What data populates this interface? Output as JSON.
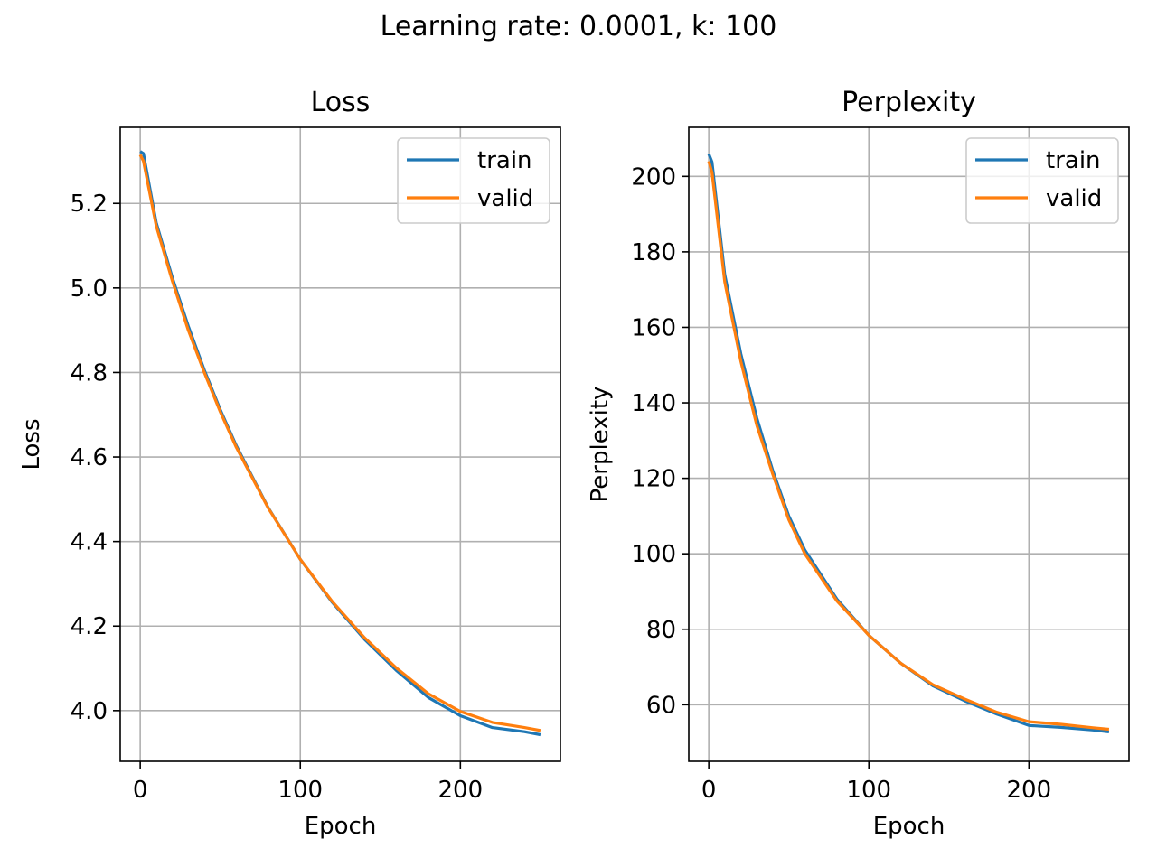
{
  "suptitle": "Learning rate: 0.0001, k: 100",
  "colors": {
    "train": "#1f77b4",
    "valid": "#ff7f0e",
    "grid": "#b0b0b0"
  },
  "chart_data": [
    {
      "type": "line",
      "title": "Loss",
      "xlabel": "Epoch",
      "ylabel": "Loss",
      "xlim": [
        -12.5,
        262.5
      ],
      "ylim": [
        3.88,
        5.38
      ],
      "xticks": [
        0,
        100,
        200
      ],
      "yticks": [
        4.0,
        4.2,
        4.4,
        4.6,
        4.8,
        5.0,
        5.2
      ],
      "ytick_decimals": 1,
      "grid": true,
      "legend": "upper right",
      "x": [
        0,
        2,
        10,
        20,
        30,
        40,
        50,
        60,
        80,
        100,
        120,
        140,
        160,
        180,
        200,
        220,
        240,
        250
      ],
      "series": [
        {
          "name": "train",
          "color_key": "train",
          "values": [
            5.323,
            5.318,
            5.155,
            5.025,
            4.91,
            4.806,
            4.712,
            4.627,
            4.48,
            4.358,
            4.256,
            4.169,
            4.095,
            4.031,
            3.988,
            3.96,
            3.95,
            3.943
          ]
        },
        {
          "name": "valid",
          "color_key": "valid",
          "values": [
            5.315,
            5.3,
            5.147,
            5.017,
            4.9,
            4.8,
            4.707,
            4.623,
            4.479,
            4.358,
            4.258,
            4.173,
            4.101,
            4.04,
            3.998,
            3.972,
            3.96,
            3.953
          ]
        }
      ]
    },
    {
      "type": "line",
      "title": "Perplexity",
      "xlabel": "Epoch",
      "ylabel": "Perplexity",
      "xlim": [
        -12.5,
        262.5
      ],
      "ylim": [
        45,
        213
      ],
      "xticks": [
        0,
        100,
        200
      ],
      "yticks": [
        60,
        80,
        100,
        120,
        140,
        160,
        180,
        200
      ],
      "ytick_decimals": 0,
      "grid": true,
      "legend": "upper right",
      "x": [
        0,
        2,
        10,
        20,
        30,
        40,
        50,
        60,
        80,
        100,
        120,
        140,
        160,
        180,
        200,
        220,
        240,
        250
      ],
      "series": [
        {
          "name": "train",
          "color_key": "train",
          "values": [
            206,
            203.8,
            174,
            153,
            136,
            122,
            110,
            101,
            88,
            78.4,
            71,
            65,
            61,
            57.5,
            54.5,
            54.0,
            53.3,
            52.8
          ]
        },
        {
          "name": "valid",
          "color_key": "valid",
          "values": [
            204,
            201.0,
            172,
            151,
            134,
            121,
            109,
            100,
            87.5,
            78.4,
            71,
            65.3,
            61.5,
            58,
            55.5,
            54.8,
            53.9,
            53.5
          ]
        }
      ]
    }
  ]
}
